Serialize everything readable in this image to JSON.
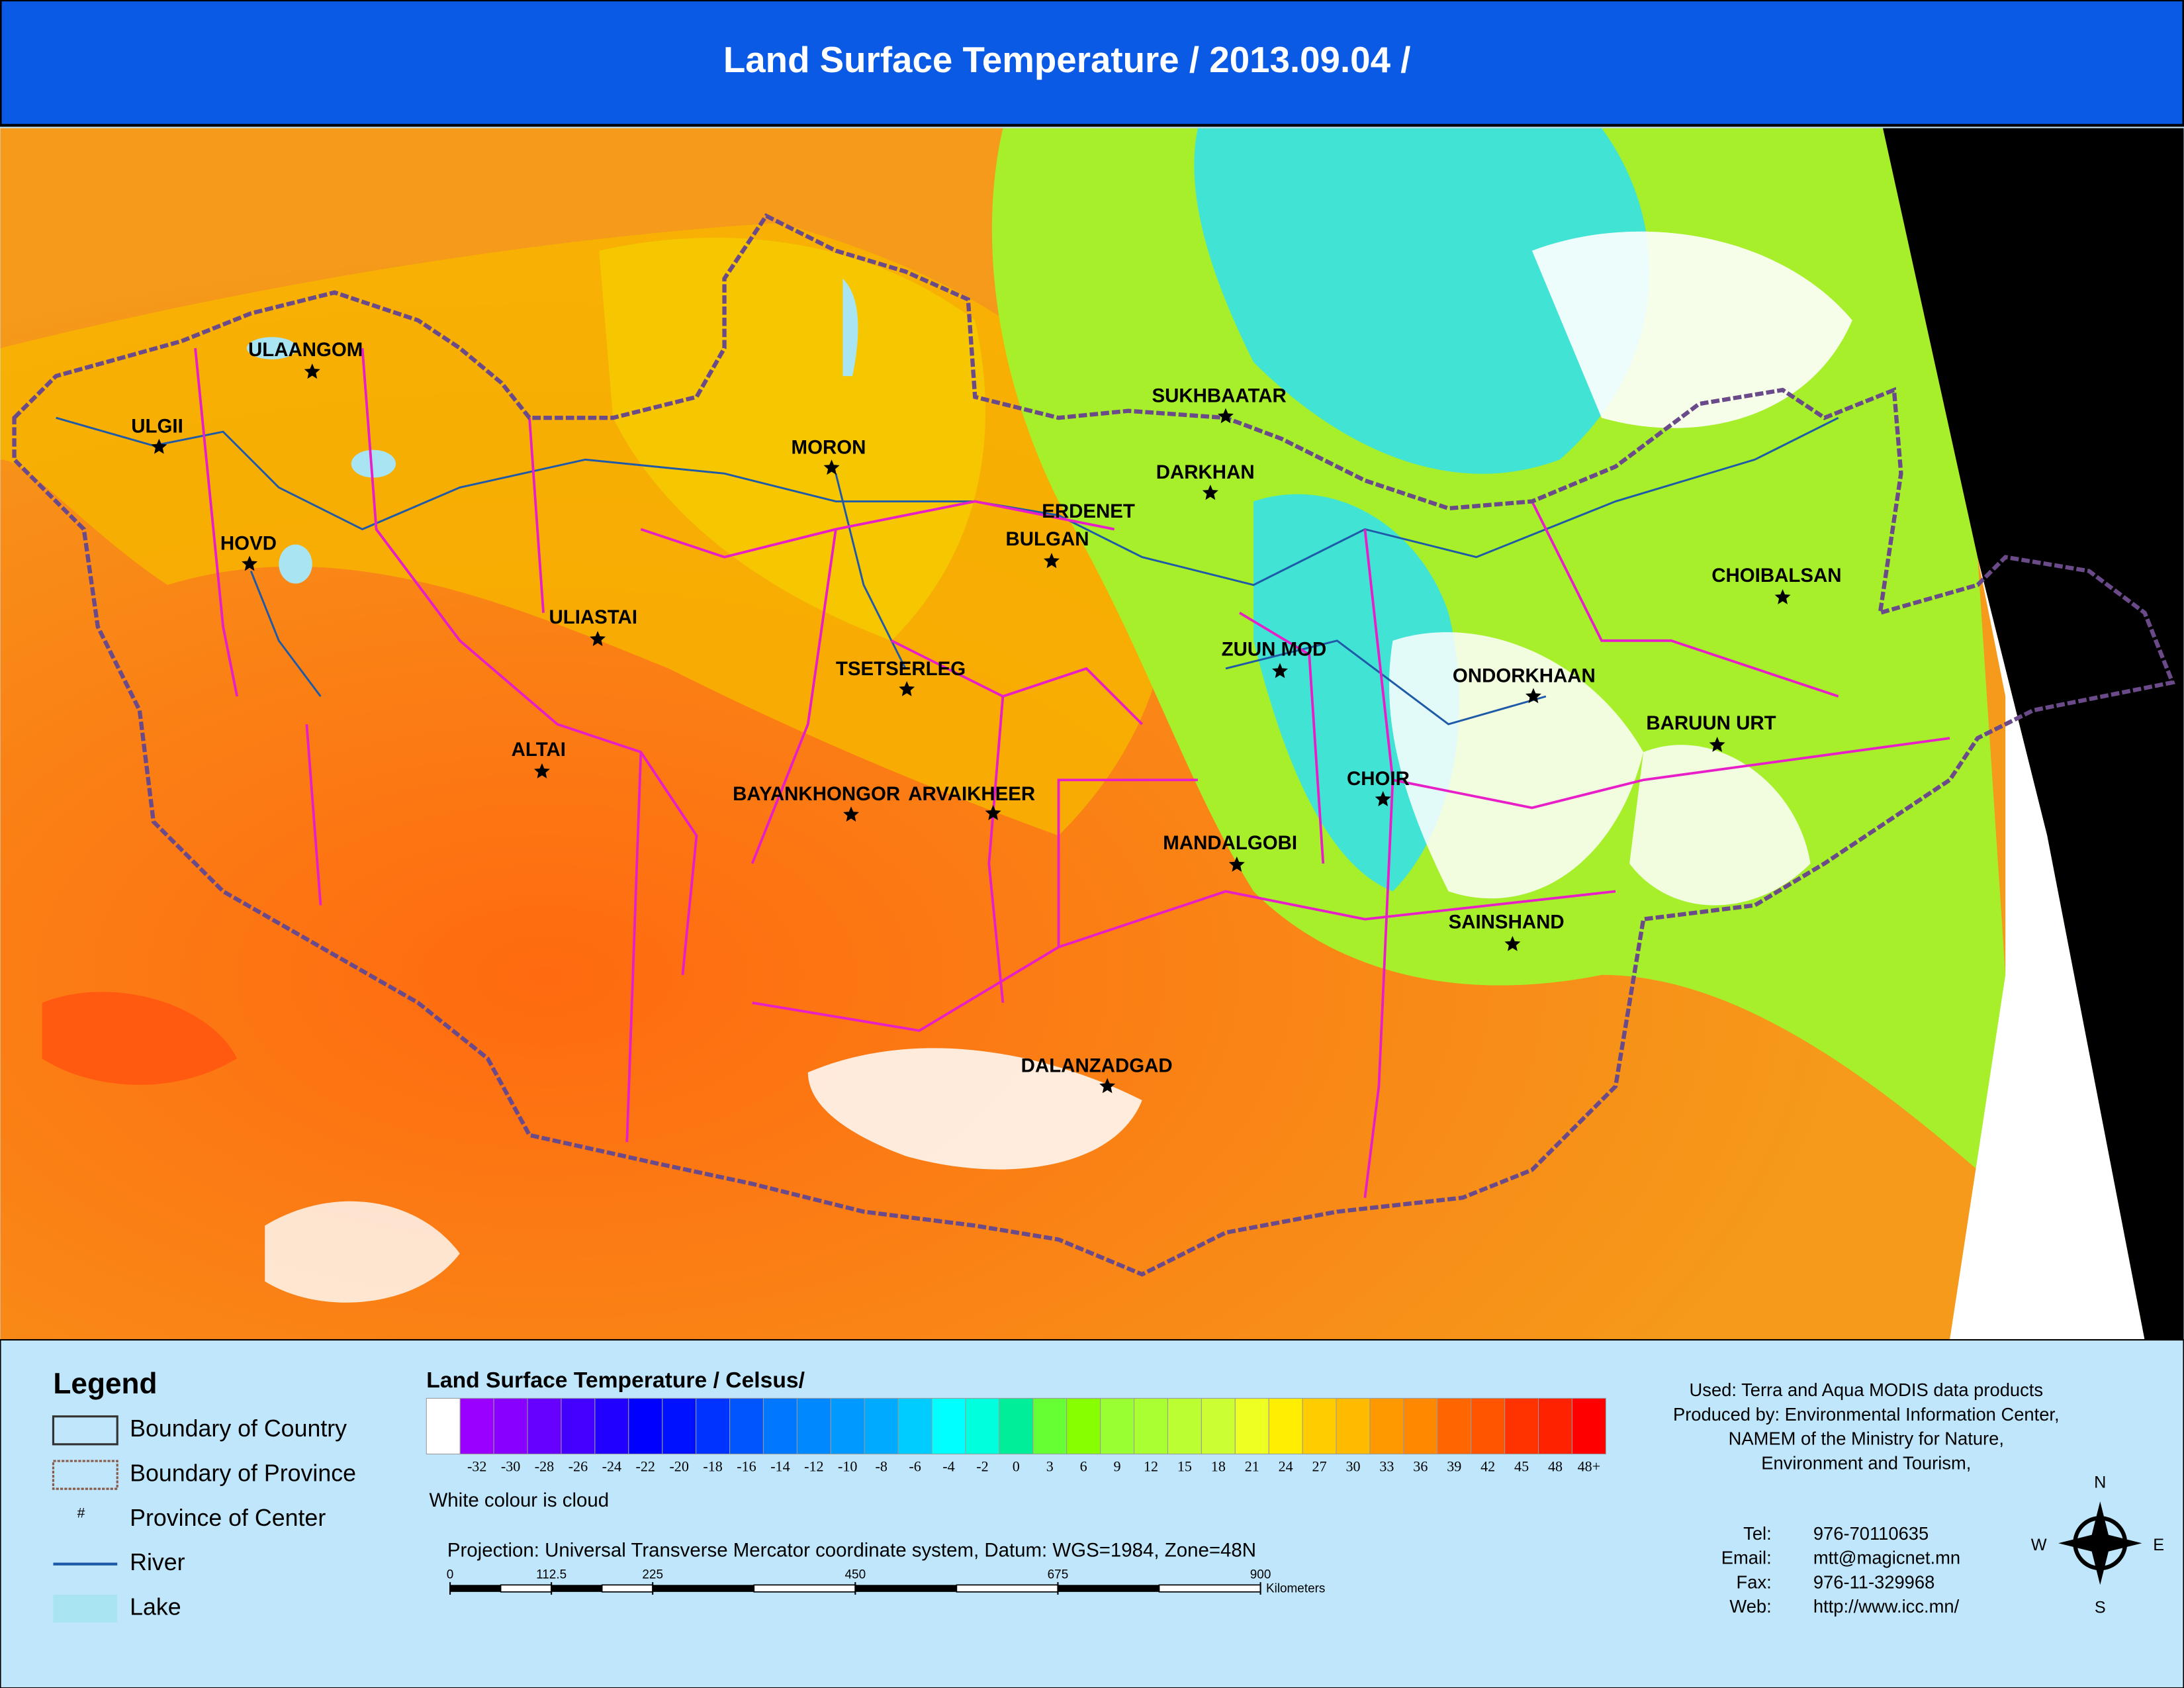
{
  "header": {
    "title": "Land Surface Temperature / 2013.09.04 /"
  },
  "map": {
    "places": [
      "ULAANGOM",
      "ULGII",
      "HOVD",
      "MORON",
      "ULIASTAI",
      "ALTAI",
      "TSETSERLEG",
      "BAYANKHONGOR",
      "ARVAIKHEER",
      "ERDENET",
      "BULGAN",
      "SUKHBAATAR",
      "DARKHAN",
      "ZUUN MOD",
      "CHOIR",
      "MANDALGOBI",
      "SAINSHAND",
      "DALANZADGAD",
      "ONDORKHAAN",
      "BARUUN URT",
      "CHOIBALSAN"
    ]
  },
  "legend": {
    "title": "Legend",
    "items": [
      {
        "label": "Boundary of Country"
      },
      {
        "label": "Boundary of Province"
      },
      {
        "symbol": "#",
        "label": "Province of Center"
      },
      {
        "label": "River"
      },
      {
        "label": "Lake"
      }
    ]
  },
  "colorbar": {
    "title": "Land Surface Temperature / Celsus/",
    "ticks": [
      -32,
      -30,
      -28,
      -26,
      -24,
      -22,
      -20,
      -18,
      -16,
      -14,
      -12,
      -10,
      -8,
      -6,
      -4,
      -2,
      0,
      3,
      6,
      9,
      12,
      15,
      18,
      21,
      24,
      27,
      30,
      33,
      36,
      39,
      42,
      45,
      48,
      {
        "value": 48,
        "label": "48+"
      }
    ],
    "colors": [
      "#9900ff",
      "#8800ff",
      "#6600ff",
      "#4400ff",
      "#2200ff",
      "#0000ff",
      "#0011ff",
      "#0033ff",
      "#0055ff",
      "#0077ff",
      "#0088ff",
      "#0099ff",
      "#00aaff",
      "#00ccff",
      "#00ffff",
      "#00ffdd",
      "#00ee99",
      "#66ff33",
      "#88ff00",
      "#99ff33",
      "#aaff33",
      "#bbff33",
      "#ccff33",
      "#eeff22",
      "#ffee00",
      "#ffcc00",
      "#ffbb00",
      "#ff9900",
      "#ff8800",
      "#ff6600",
      "#ff5500",
      "#ff3300",
      "#ff2200",
      "#ff0000"
    ],
    "note": "White colour is cloud"
  },
  "projection": "Projection: Universal Transverse Mercator coordinate system, Datum: WGS=1984, Zone=48N",
  "scale": {
    "ticks": [
      0,
      112.5,
      225,
      450,
      675,
      900
    ],
    "unit": "Kilometers"
  },
  "credits": {
    "lines": [
      "Used: Terra and Aqua MODIS data products",
      "Produced by: Environmental Information Center,",
      "NAMEM of the Ministry for Nature,",
      "Environment and Tourism,"
    ]
  },
  "contact": {
    "rows": [
      [
        "Tel:",
        "976-70110635"
      ],
      [
        "Email:",
        "mtt@magicnet.mn"
      ],
      [
        "Fax:",
        "976-11-329968"
      ],
      [
        "Web:",
        "http://www.icc.mn/"
      ]
    ]
  },
  "compass": {
    "n": "N",
    "e": "E",
    "s": "S",
    "w": "W"
  }
}
